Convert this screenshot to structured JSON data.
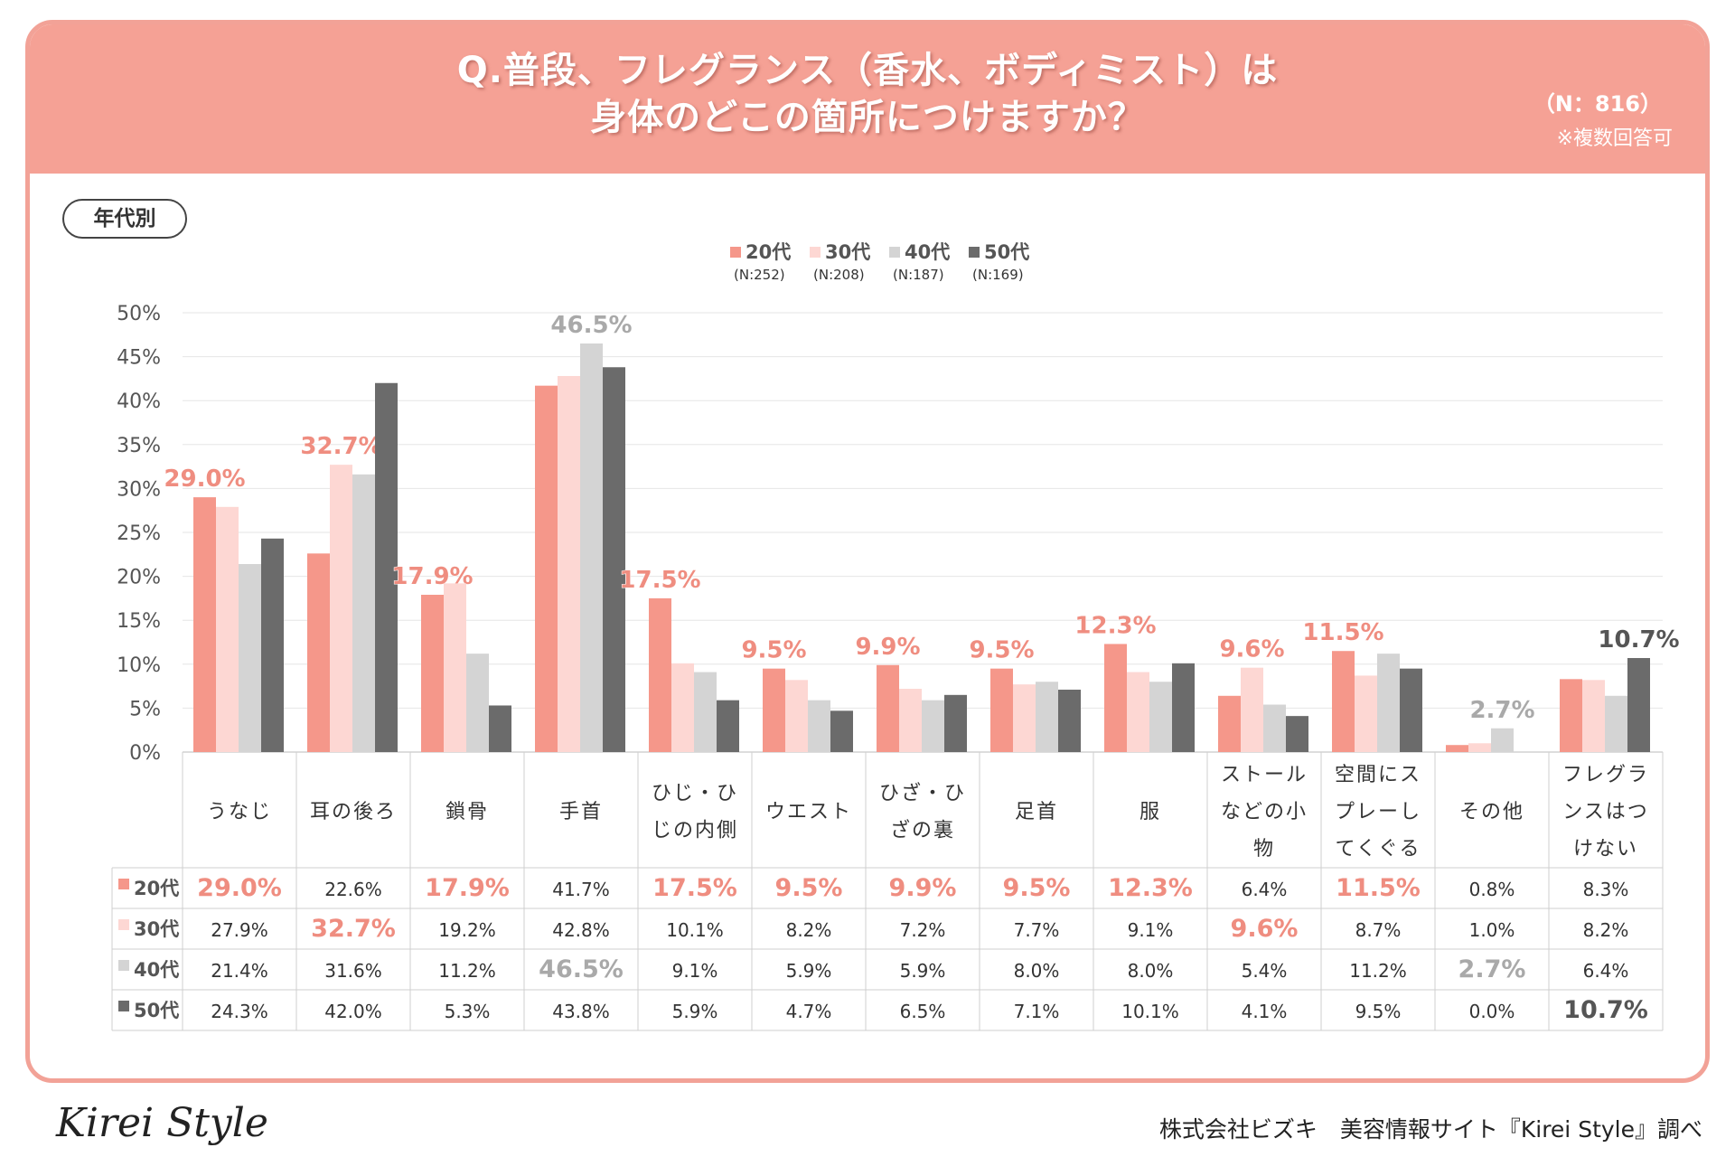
{
  "header": {
    "title_line1": "Q.普段、フレグランス（香水、ボディミスト）は",
    "title_line2": "身体のどこの箇所につけますか？",
    "n_total": "（N：816）",
    "note": "※複数回答可"
  },
  "badge": {
    "label": "年代別"
  },
  "legend": [
    {
      "name": "20代",
      "n": "(N:252)"
    },
    {
      "name": "30代",
      "n": "(N:208)"
    },
    {
      "name": "40代",
      "n": "(N:187)"
    },
    {
      "name": "50代",
      "n": "(N:169)"
    }
  ],
  "colors": {
    "s20": "#f5978a",
    "s30": "#fdd7d3",
    "s40": "#d4d4d4",
    "s50": "#6b6b6b",
    "label20": "#ef8d80",
    "label40": "#a9a9a9",
    "label50": "#555555",
    "header": "#f5a195",
    "grid": "#e6e6e6"
  },
  "chart_data": {
    "type": "bar",
    "ylim": [
      0,
      50
    ],
    "yticks": [
      "0%",
      "5%",
      "10%",
      "15%",
      "20%",
      "25%",
      "30%",
      "35%",
      "40%",
      "45%",
      "50%"
    ],
    "categories": [
      "うなじ",
      "耳の後ろ",
      "鎖骨",
      "手首",
      "ひじ・ひじの内側",
      "ウエスト",
      "ひざ・ひざの裏",
      "足首",
      "服",
      "ストールなどの小物",
      "空間にスプレーしてくぐる",
      "その他",
      "フレグランスはつけない"
    ],
    "category_lines": [
      [
        "うなじ"
      ],
      [
        "耳の後ろ"
      ],
      [
        "鎖骨"
      ],
      [
        "手首"
      ],
      [
        "ひじ・ひ",
        "じの内側"
      ],
      [
        "ウエスト"
      ],
      [
        "ひざ・ひ",
        "ざの裏"
      ],
      [
        "足首"
      ],
      [
        "服"
      ],
      [
        "ストール",
        "などの小",
        "物"
      ],
      [
        "空間にス",
        "プレーし",
        "てくぐる"
      ],
      [
        "その他"
      ],
      [
        "フレグラ",
        "ンスはつ",
        "けない"
      ]
    ],
    "series": [
      {
        "name": "20代",
        "values": [
          29.0,
          22.6,
          17.9,
          41.7,
          17.5,
          9.5,
          9.9,
          9.5,
          12.3,
          6.4,
          11.5,
          0.8,
          8.3
        ],
        "labels": [
          "29.0%",
          "22.6%",
          "17.9%",
          "41.7%",
          "17.5%",
          "9.5%",
          "9.9%",
          "9.5%",
          "12.3%",
          "6.4%",
          "11.5%",
          "0.8%",
          "8.3%"
        ]
      },
      {
        "name": "30代",
        "values": [
          27.9,
          32.7,
          19.2,
          42.8,
          10.1,
          8.2,
          7.2,
          7.7,
          9.1,
          9.6,
          8.7,
          1.0,
          8.2
        ],
        "labels": [
          "27.9%",
          "32.7%",
          "19.2%",
          "42.8%",
          "10.1%",
          "8.2%",
          "7.2%",
          "7.7%",
          "9.1%",
          "9.6%",
          "8.7%",
          "1.0%",
          "8.2%"
        ]
      },
      {
        "name": "40代",
        "values": [
          21.4,
          31.6,
          11.2,
          46.5,
          9.1,
          5.9,
          5.9,
          8.0,
          8.0,
          5.4,
          11.2,
          2.7,
          6.4
        ],
        "labels": [
          "21.4%",
          "31.6%",
          "11.2%",
          "46.5%",
          "9.1%",
          "5.9%",
          "5.9%",
          "8.0%",
          "8.0%",
          "5.4%",
          "11.2%",
          "2.7%",
          "6.4%"
        ]
      },
      {
        "name": "50代",
        "values": [
          24.3,
          42.0,
          5.3,
          43.8,
          5.9,
          4.7,
          6.5,
          7.1,
          10.1,
          4.1,
          9.5,
          0.0,
          10.7
        ],
        "labels": [
          "24.3%",
          "42.0%",
          "5.3%",
          "43.8%",
          "5.9%",
          "4.7%",
          "6.5%",
          "7.1%",
          "10.1%",
          "4.1%",
          "9.5%",
          "0.0%",
          "10.7%"
        ]
      }
    ],
    "highlight": [
      0,
      1,
      0,
      2,
      0,
      0,
      0,
      0,
      0,
      1,
      0,
      2,
      3
    ]
  },
  "footer": {
    "logo": "Kirei Style",
    "credit": "株式会社ビズキ　美容情報サイト『Kirei Style』調べ"
  }
}
